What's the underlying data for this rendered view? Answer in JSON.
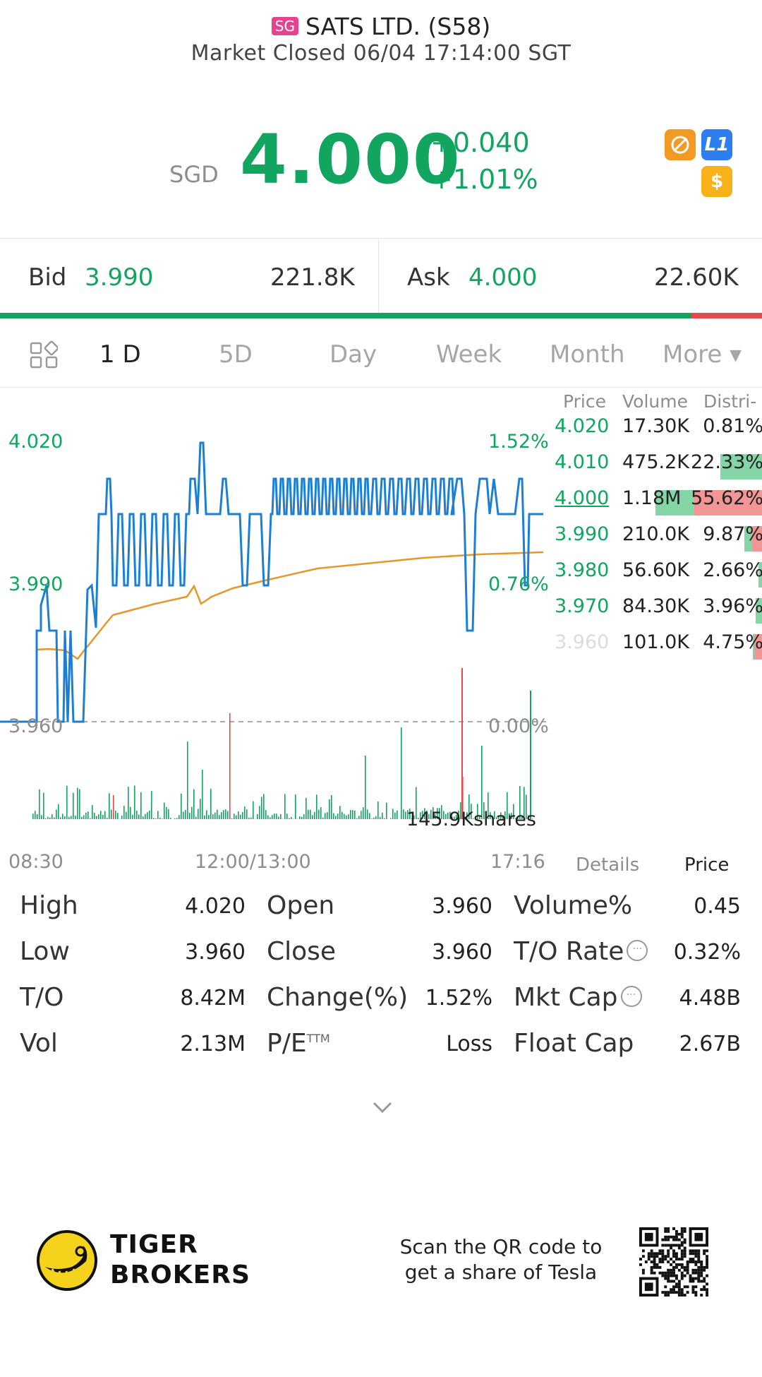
{
  "header": {
    "exchange_badge": "SG",
    "title": "SATS LTD. (S58)",
    "status": "Market Closed 06/04 17:14:00 SGT"
  },
  "quote": {
    "currency": "SGD",
    "price": "4.000",
    "change": "+0.040",
    "change_pct": "+1.01%",
    "badges": [
      {
        "icon": "hidden-eye-icon",
        "color": "#f39a25"
      },
      {
        "icon": "level1-icon",
        "label": "L1",
        "color": "#2d7ff0"
      },
      {
        "icon": "dollar-icon",
        "label": "$",
        "color": "#f7b21a"
      }
    ]
  },
  "bidask": {
    "bid_label": "Bid",
    "bid_price": "3.990",
    "bid_volume": "221.8K",
    "ask_label": "Ask",
    "ask_price": "4.000",
    "ask_volume": "22.60K",
    "bid_share": 0.907
  },
  "tabs": [
    "1 D",
    "5D",
    "Day",
    "Week",
    "Month",
    "More"
  ],
  "active_tab": "1 D",
  "chart_labels": {
    "y_left": [
      "4.020",
      "3.990",
      "3.960"
    ],
    "y_right": [
      "1.52%",
      "0.76%",
      "0.00%"
    ],
    "x": [
      "08:30",
      "12:00/13:00",
      "17:16"
    ],
    "volume_label": "145.9Kshares"
  },
  "chart_data": {
    "type": "line",
    "x": [
      "08:30",
      "12:00/13:00",
      "17:16"
    ],
    "ylim": [
      3.96,
      4.02
    ],
    "series": [
      {
        "color": "#1c7fd6"
      },
      {
        "color": "#e8962a"
      }
    ]
  },
  "order_table": {
    "headers": [
      "Price",
      "Volume",
      "Distri-"
    ],
    "rows": [
      {
        "price": "4.020",
        "volume": "17.30K",
        "dist": "0.81%",
        "buy": 0.81,
        "sell": 0.0,
        "color": "green"
      },
      {
        "price": "4.010",
        "volume": "475.2K",
        "dist": "22.33%",
        "buy": 22.33,
        "sell": 0.0,
        "color": "green"
      },
      {
        "price": "4.000",
        "volume": "1.18M",
        "dist": "55.62%",
        "buy": 20,
        "sell": 35.62,
        "color": "green"
      },
      {
        "price": "3.990",
        "volume": "210.0K",
        "dist": "9.87%",
        "buy": 4,
        "sell": 5.87,
        "color": "green"
      },
      {
        "price": "3.980",
        "volume": "56.60K",
        "dist": "2.66%",
        "buy": 2.66,
        "sell": 0.0,
        "color": "green"
      },
      {
        "price": "3.970",
        "volume": "84.30K",
        "dist": "3.96%",
        "buy": 3.96,
        "sell": 0.0,
        "color": "green"
      },
      {
        "price": "3.960",
        "volume": "101.0K",
        "dist": "4.75%",
        "buy": 0.0,
        "sell": 4.75,
        "color": "faded"
      }
    ]
  },
  "side_tabs": {
    "details": "Details",
    "price": "Price"
  },
  "stats": [
    [
      {
        "label": "High",
        "value": "4.020"
      },
      {
        "label": "Open",
        "value": "3.960"
      },
      {
        "label": "Volume%",
        "value": "0.45"
      }
    ],
    [
      {
        "label": "Low",
        "value": "3.960"
      },
      {
        "label": "Close",
        "value": "3.960"
      },
      {
        "label": "T/O Rate",
        "value": "0.32%"
      }
    ],
    [
      {
        "label": "T/O",
        "value": "8.42M"
      },
      {
        "label": "Change(%)",
        "value": "1.52%"
      },
      {
        "label": "Mkt Cap",
        "value": "4.48B"
      }
    ],
    [
      {
        "label": "Vol",
        "value": "2.13M"
      },
      {
        "label": "P/E",
        "value": "Loss"
      },
      {
        "label": "Float Cap",
        "value": "2.67B"
      }
    ]
  ],
  "pe_superscript": "TTM",
  "footer": {
    "brand_line1": "TIGER",
    "brand_line2": "BROKERS",
    "qr_line1": "Scan the QR code to",
    "qr_line2": "get a share of Tesla"
  },
  "colors": {
    "up": "#12a560",
    "down": "#e24b4b",
    "price_line": "#1c7fd6",
    "avg_line": "#e8962a"
  }
}
